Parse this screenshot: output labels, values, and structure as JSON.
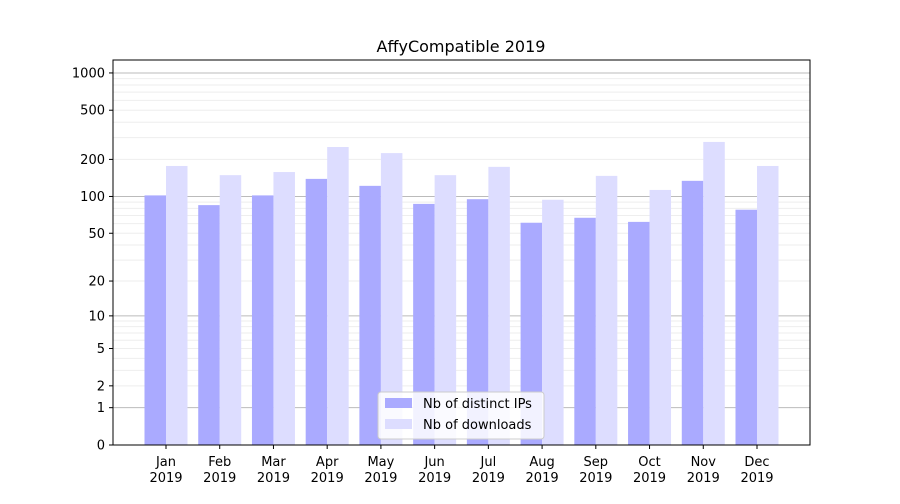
{
  "chart_data": {
    "type": "bar",
    "title": "AffyCompatible 2019",
    "xlabel": "",
    "ylabel": "",
    "y_scale": "log(1+y)",
    "ylim": [
      0,
      1300
    ],
    "y_ticks": [
      0,
      1,
      2,
      5,
      10,
      20,
      50,
      100,
      200,
      500,
      1000
    ],
    "grid": true,
    "legend_position": "lower center",
    "categories": [
      "Jan\n2019",
      "Feb\n2019",
      "Mar\n2019",
      "Apr\n2019",
      "May\n2019",
      "Jun\n2019",
      "Jul\n2019",
      "Aug\n2019",
      "Sep\n2019",
      "Oct\n2019",
      "Nov\n2019",
      "Dec\n2019"
    ],
    "series": [
      {
        "name": "Nb of distinct IPs",
        "color": "#aaaaff",
        "values": [
          102,
          85,
          102,
          139,
          122,
          87,
          95,
          61,
          67,
          62,
          134,
          78
        ]
      },
      {
        "name": "Nb of downloads",
        "color": "#ddddff",
        "values": [
          177,
          149,
          158,
          252,
          225,
          149,
          174,
          94,
          147,
          113,
          277,
          177
        ]
      }
    ]
  }
}
